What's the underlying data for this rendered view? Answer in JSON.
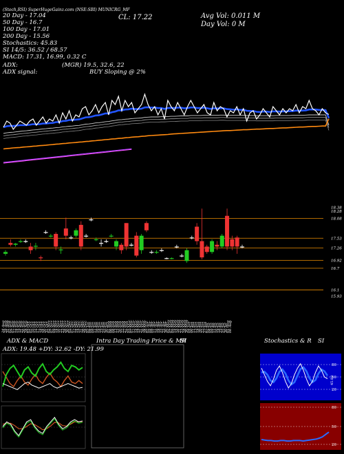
{
  "header": {
    "line1": "(Stoch,RSI) SuperHugeGainz.com (NSE:SBI) MUNICRG_MF",
    "ema20_label": "20 Day - 17.04",
    "ema50_label": "50 Day - 16.7",
    "ema100_label": "100 Day - 17.01",
    "ema200_label": "200 Day - 15.56",
    "close_label": "CL: 17.22",
    "avg_vol_label": "Avg Vol: 0.011 M",
    "day_vol_label": "Day Vol: 0  M",
    "stochastics_label": "Stochastics: 45.83",
    "si_label": "SI 14/5: 36.52 / 68.57",
    "macd_label": "MACD: 17.31, 16.99, 0.32  C",
    "adx_label": "ADX:",
    "adx_values": "(MGR) 19.5,  32.6,  22",
    "adx_signal_label": "ADX  signal:",
    "adx_signal_value": "BUY Sloping @ 2%"
  },
  "colors": {
    "price_line": "#ffffff",
    "ema20": "#2255ff",
    "ema50": "#cccccc",
    "ema100": "#ff8a10",
    "ema200": "#ff55ff",
    "candle_up": "#22cc22",
    "candle_down": "#ee3333",
    "level_line": "#cc7a00",
    "plus_di": "#22cc22",
    "minus_di": "#cc5522",
    "stoch_bg": "#0000cc",
    "rsi_bg": "#880000"
  },
  "chart_data": {
    "type": "line",
    "x": [
      "24 Aug",
      "29 Aug",
      "31 Aug",
      "02 Sep",
      "07 Sep",
      "12 Sep",
      "14 Sep",
      "19 Sep",
      "21 Sep",
      "26 Sep",
      "28 Sep",
      "03 Oct",
      "05 Oct",
      "10 Oct",
      "12 Oct",
      "17 Oct",
      "19 Oct",
      "24 Oct",
      "26 Oct",
      "31 Oct",
      "02 Nov",
      "07 Nov",
      "09 Nov",
      "14 Nov",
      "16 Nov",
      "21 Nov",
      "23 Nov",
      "28 Nov",
      "30 Nov",
      "05 Dec",
      "07 Dec",
      "12 Dec",
      "14 Dec",
      "19 Dec",
      "21 Dec",
      "26 Dec",
      "28 Dec",
      "02 Jan",
      "04 Jan",
      "09 Jan",
      "11 Jan",
      "16 Jan",
      "18 Jan",
      "23 Jan",
      "25 Jan",
      "30 Jan",
      "01 Feb",
      "06 Feb",
      "08 Feb",
      "13 Feb",
      "15 Feb",
      "20 Feb",
      "22 Feb",
      "27 Feb",
      "29 Feb",
      "05 Mar",
      "07 Mar",
      "12 Mar",
      "14 Mar",
      "19 Mar",
      "21 Mar",
      "26 Mar",
      "28 Mar",
      "02 Apr",
      "04 Apr",
      "09 Apr",
      "11 Apr",
      "16 Apr",
      "18 Apr",
      "23 Apr",
      "25 Apr",
      "30 Apr",
      "02 May",
      "07 May",
      "09 May",
      "14 May",
      "16 May",
      "21 May",
      "23 May",
      "28 May",
      "30 May",
      "04 Jun",
      "06 Jun",
      "11 Jun",
      "13 Jun",
      "18 Jun",
      "20 Jun",
      "25 Jun",
      "27 Jun",
      "02 Jul",
      "04 Jul",
      "09 Jul",
      "11 Jul",
      "16 Jul",
      "18 Jul",
      "23 Jul",
      "25 Jul",
      "30 Jul",
      "01 Aug",
      "06 Aug"
    ],
    "price": [
      16.6,
      16.9,
      16.8,
      16.5,
      16.7,
      16.9,
      16.8,
      16.7,
      16.9,
      17.0,
      16.7,
      16.9,
      17.1,
      16.8,
      17.0,
      16.9,
      17.2,
      16.8,
      17.3,
      17.0,
      17.4,
      16.9,
      17.2,
      17.1,
      17.5,
      17.6,
      17.2,
      17.4,
      17.7,
      17.3,
      17.6,
      17.8,
      17.2,
      17.9,
      17.7,
      18.1,
      17.4,
      17.9,
      17.6,
      17.8,
      17.3,
      17.5,
      17.7,
      18.2,
      17.7,
      17.4,
      17.6,
      17.2,
      17.5,
      17.0,
      17.9,
      17.6,
      17.4,
      17.8,
      17.5,
      17.2,
      17.6,
      17.9,
      17.6,
      17.3,
      17.5,
      17.7,
      17.3,
      17.2,
      17.8,
      17.4,
      17.6,
      17.5,
      17.1,
      17.4,
      17.3,
      17.6,
      17.2,
      17.5,
      16.9,
      17.3,
      17.4,
      17.0,
      17.2,
      17.5,
      17.3,
      17.1,
      17.6,
      17.4,
      17.2,
      17.5,
      17.3,
      17.5,
      17.4,
      17.7,
      17.3,
      17.6,
      17.5,
      17.9,
      17.5,
      17.4,
      17.2,
      17.5,
      17.3,
      17.22
    ],
    "ema20": [
      16.6,
      16.65,
      16.67,
      16.66,
      16.68,
      16.7,
      16.7,
      16.7,
      16.72,
      16.75,
      16.74,
      16.75,
      16.78,
      16.78,
      16.8,
      16.81,
      16.85,
      16.85,
      16.9,
      16.91,
      16.95,
      16.95,
      16.97,
      16.98,
      17.03,
      17.08,
      17.09,
      17.12,
      17.17,
      17.18,
      17.22,
      17.27,
      17.27,
      17.33,
      17.36,
      17.42,
      17.42,
      17.46,
      17.47,
      17.5,
      17.48,
      17.48,
      17.5,
      17.56,
      17.57,
      17.55,
      17.56,
      17.53,
      17.53,
      17.49,
      17.53,
      17.54,
      17.53,
      17.55,
      17.55,
      17.52,
      17.53,
      17.56,
      17.56,
      17.53,
      17.53,
      17.55,
      17.52,
      17.49,
      17.52,
      17.51,
      17.52,
      17.52,
      17.48,
      17.47,
      17.45,
      17.47,
      17.44,
      17.45,
      17.4,
      17.39,
      17.39,
      17.35,
      17.34,
      17.36,
      17.36,
      17.34,
      17.37,
      17.37,
      17.36,
      17.37,
      17.37,
      17.38,
      17.38,
      17.41,
      17.4,
      17.41,
      17.42,
      17.46,
      17.46,
      17.46,
      17.44,
      17.44,
      17.43,
      17.04
    ],
    "ema50": [
      16.3,
      16.33,
      16.35,
      16.36,
      16.38,
      16.4,
      16.42,
      16.43,
      16.45,
      16.47,
      16.48,
      16.5,
      16.52,
      16.53,
      16.55,
      16.56,
      16.58,
      16.59,
      16.62,
      16.63,
      16.65,
      16.66,
      16.68,
      16.69,
      16.72,
      16.75,
      16.76,
      16.78,
      16.81,
      16.82,
      16.84,
      16.87,
      16.88,
      16.91,
      16.93,
      16.96,
      16.97,
      16.99,
      17.0,
      17.02,
      17.03,
      17.04,
      17.05,
      17.08,
      17.09,
      17.1,
      17.1,
      17.1,
      17.11,
      17.11,
      17.12,
      17.13,
      17.13,
      17.14,
      17.15,
      17.15,
      17.15,
      17.17,
      17.17,
      17.17,
      17.17,
      17.18,
      17.18,
      17.18,
      17.18,
      17.18,
      17.19,
      17.19,
      17.18,
      17.18,
      17.18,
      17.18,
      17.18,
      17.18,
      17.17,
      17.17,
      17.17,
      17.16,
      17.16,
      17.16,
      17.16,
      17.16,
      17.16,
      17.17,
      17.17,
      17.17,
      17.17,
      17.17,
      17.18,
      17.18,
      17.18,
      17.18,
      17.19,
      17.2,
      17.2,
      17.2,
      17.2,
      17.2,
      17.2,
      16.7
    ],
    "ema100": [
      15.55,
      15.57,
      15.58,
      15.6,
      15.61,
      15.62,
      15.64,
      15.65,
      15.66,
      15.68,
      15.69,
      15.71,
      15.72,
      15.73,
      15.75,
      15.76,
      15.78,
      15.79,
      15.81,
      15.82,
      15.84,
      15.85,
      15.86,
      15.88,
      15.89,
      15.91,
      15.92,
      15.94,
      15.95,
      15.97,
      15.98,
      16.0,
      16.01,
      16.03,
      16.04,
      16.06,
      16.07,
      16.09,
      16.1,
      16.12,
      16.13,
      16.14,
      16.16,
      16.17,
      16.19,
      16.2,
      16.21,
      16.22,
      16.23,
      16.24,
      16.25,
      16.27,
      16.28,
      16.29,
      16.3,
      16.31,
      16.32,
      16.33,
      16.34,
      16.35,
      16.36,
      16.37,
      16.38,
      16.39,
      16.4,
      16.41,
      16.42,
      16.43,
      16.44,
      16.44,
      16.45,
      16.46,
      16.47,
      16.48,
      16.48,
      16.49,
      16.5,
      16.51,
      16.51,
      16.52,
      16.53,
      16.54,
      16.54,
      16.55,
      16.56,
      16.57,
      16.57,
      16.58,
      16.59,
      16.6,
      16.61,
      16.61,
      16.62,
      16.63,
      16.64,
      16.64,
      16.65,
      16.66,
      16.66,
      17.01
    ],
    "ema200_points": 40,
    "ema200_start": 14.9,
    "ema200_end": 15.56,
    "candles": [
      {
        "o": 17.1,
        "c": 17.15,
        "h": 17.2,
        "l": 17.05
      },
      {
        "o": 17.4,
        "c": 17.35,
        "h": 17.5,
        "l": 17.3
      },
      {
        "o": 17.35,
        "c": 17.38,
        "h": 17.4,
        "l": 17.3
      },
      {
        "o": 17.45,
        "c": 17.45,
        "h": 17.5,
        "l": 17.4
      },
      {
        "o": 17.45,
        "c": 17.45,
        "h": 17.5,
        "l": 17.4
      },
      {
        "o": 17.3,
        "c": 17.2,
        "h": 17.4,
        "l": 17.1
      },
      {
        "o": 17.3,
        "c": 17.32,
        "h": 17.4,
        "l": 17.2
      },
      {
        "o": 17.0,
        "c": 16.98,
        "h": 17.05,
        "l": 16.9
      },
      {
        "o": 17.7,
        "c": 17.7,
        "h": 17.75,
        "l": 17.65
      },
      {
        "o": 17.6,
        "c": 17.6,
        "h": 17.65,
        "l": 17.55
      },
      {
        "o": 17.65,
        "c": 17.3,
        "h": 17.7,
        "l": 17.2
      },
      {
        "o": 17.2,
        "c": 17.22,
        "h": 17.3,
        "l": 17.1
      },
      {
        "o": 17.8,
        "c": 17.6,
        "h": 18.1,
        "l": 17.5
      },
      {
        "o": 17.55,
        "c": 17.55,
        "h": 17.6,
        "l": 17.5
      },
      {
        "o": 17.6,
        "c": 17.75,
        "h": 17.8,
        "l": 17.55
      },
      {
        "o": 17.9,
        "c": 17.3,
        "h": 18.0,
        "l": 17.2
      },
      {
        "o": 17.6,
        "c": 17.6,
        "h": 17.65,
        "l": 17.55
      },
      {
        "o": 18.05,
        "c": 18.05,
        "h": 18.1,
        "l": 18.0
      },
      {
        "o": 17.5,
        "c": 17.5,
        "h": 17.55,
        "l": 17.45
      },
      {
        "o": 17.4,
        "c": 17.4,
        "h": 17.5,
        "l": 17.3
      },
      {
        "o": 17.45,
        "c": 17.45,
        "h": 17.5,
        "l": 17.4
      },
      {
        "o": 17.6,
        "c": 17.6,
        "h": 17.65,
        "l": 17.55
      },
      {
        "o": 17.3,
        "c": 17.45,
        "h": 17.5,
        "l": 17.2
      },
      {
        "o": 17.35,
        "c": 17.2,
        "h": 17.4,
        "l": 17.1
      },
      {
        "o": 17.95,
        "c": 17.3,
        "h": 17.95,
        "l": 17.2
      },
      {
        "o": 17.35,
        "c": 17.35,
        "h": 17.4,
        "l": 17.3
      },
      {
        "o": 17.6,
        "c": 17.05,
        "h": 17.7,
        "l": 17.0
      },
      {
        "o": 17.2,
        "c": 17.6,
        "h": 17.65,
        "l": 17.1
      },
      {
        "o": 17.95,
        "c": 17.75,
        "h": 18.0,
        "l": 17.7
      },
      {
        "o": 17.15,
        "c": 17.15,
        "h": 17.2,
        "l": 17.1
      },
      {
        "o": 17.15,
        "c": 17.15,
        "h": 17.2,
        "l": 17.1
      },
      {
        "o": 17.2,
        "c": 17.2,
        "h": 17.25,
        "l": 17.15
      },
      {
        "o": 16.98,
        "c": 16.98,
        "h": 17.0,
        "l": 16.95
      },
      {
        "o": 16.98,
        "c": 16.98,
        "h": 17.0,
        "l": 16.95
      },
      {
        "o": 17.3,
        "c": 17.3,
        "h": 17.35,
        "l": 17.25
      },
      {
        "o": 17.05,
        "c": 17.05,
        "h": 17.1,
        "l": 17.0
      },
      {
        "o": 16.9,
        "c": 17.2,
        "h": 17.25,
        "l": 16.85
      },
      {
        "o": 17.55,
        "c": 17.55,
        "h": 17.6,
        "l": 17.5
      },
      {
        "o": 17.85,
        "c": 17.45,
        "h": 17.95,
        "l": 17.35
      },
      {
        "o": 17.45,
        "c": 17.0,
        "h": 18.35,
        "l": 16.95
      },
      {
        "o": 17.3,
        "c": 17.15,
        "h": 17.35,
        "l": 17.1
      },
      {
        "o": 17.15,
        "c": 17.45,
        "h": 17.5,
        "l": 17.1
      },
      {
        "o": 17.35,
        "c": 17.3,
        "h": 17.45,
        "l": 17.2
      },
      {
        "o": 17.3,
        "c": 17.6,
        "h": 17.65,
        "l": 17.25
      },
      {
        "o": 18.15,
        "c": 17.3,
        "h": 18.35,
        "l": 17.2
      },
      {
        "o": 17.5,
        "c": 17.3,
        "h": 17.6,
        "l": 17.2
      },
      {
        "o": 17.55,
        "c": 17.3,
        "h": 17.6,
        "l": 17.1
      },
      {
        "o": 17.3,
        "c": 17.3,
        "h": 17.35,
        "l": 17.25
      }
    ],
    "price_axis": [
      "18.38",
      "18.28",
      "18.08",
      "17.53",
      "17.26",
      "16.92",
      "16.7",
      "16.1",
      "15.93"
    ],
    "price_axis_values": [
      18.38,
      18.28,
      18.08,
      17.53,
      17.26,
      16.92,
      16.7,
      16.1,
      15.93
    ],
    "level_values": [
      18.08,
      17.53,
      17.26,
      16.92,
      16.7,
      16.1
    ],
    "dates": [
      "24 Aug",
      "29 Aug",
      "31 Aug",
      "02 Sep",
      "07 Sep",
      "12 Sep",
      "14 Sep",
      "19 Sep",
      "21 Sep",
      "26 Sep",
      "28 Sep",
      "03 Oct",
      "05 Oct",
      "10 Oct",
      "12 Oct",
      "17 Oct",
      "19 Oct",
      "24 Oct",
      "26 Oct",
      "31 Oct",
      "02 Nov",
      "07 Nov",
      "09 Nov",
      "14 Nov",
      "16 Nov",
      "21 Nov",
      "23 Nov",
      "28 Nov",
      "30 Nov",
      "05 Dec",
      "07 Dec",
      "12 Dec",
      "14 Dec",
      "19 Dec",
      "21 Dec",
      "26 Dec",
      "28 Dec",
      "02 Jan",
      "04 Jan",
      "09 Jan",
      "11 Jan",
      "16 Jan",
      "18 Jan",
      "23 Jan",
      "25 Jan",
      "30 Jan",
      "01 Feb",
      "06 Feb",
      "08 Feb",
      "13 Feb",
      "15 Feb",
      "20 Feb",
      "22 Feb",
      "27 Feb",
      "29 Feb",
      "05 Mar",
      "07 Mar",
      "12 Mar",
      "14 Mar",
      "19 Mar",
      "21 Mar",
      "26 Mar",
      "28 Mar",
      "02 Apr",
      "04 Apr",
      "09 Apr",
      "11 Apr",
      "16 Apr",
      "18 Apr",
      "23 Apr",
      "25 Apr",
      "30 Apr",
      "02 May",
      "07 May",
      "09 May",
      "14 May",
      "16 May",
      "21 May",
      "23 May",
      "28 May",
      "30 May",
      "04 Jun",
      "06 Jun",
      "11 Jun",
      "13 Jun",
      "18 Jun",
      "20 Jun",
      "25 Jun",
      "27 Jun",
      "02 Jul",
      "04 Jul",
      "09 Jul",
      "11 Jul",
      "16 Jul",
      "18 Jul",
      "23 Jul",
      "25 Jul",
      "30 Jul",
      "01 Aug",
      "06 Aug"
    ]
  },
  "panels": {
    "adx_title": "ADX & MACD",
    "adx_values": "ADX: 19.48  +DY: 32.62  -DY: 21.99",
    "intraday_title": "Intra Day Trading Price & MR",
    "intraday_si": "SI",
    "stoch_title": "Stochastics & R",
    "stoch_si": "SI",
    "stoch_axis": [
      "80",
      "50",
      "20"
    ],
    "stoch_value": "45.83",
    "rsi_axis": [
      "80",
      "50",
      "20"
    ],
    "adx_series": {
      "adx": [
        22,
        21,
        20,
        19,
        18,
        20,
        22,
        23,
        21,
        20,
        19,
        20,
        21,
        22,
        20,
        19,
        20,
        21,
        22,
        21,
        20,
        19,
        19.48
      ],
      "plus_di": [
        20,
        28,
        32,
        34,
        30,
        26,
        31,
        33,
        29,
        27,
        32,
        35,
        30,
        28,
        31,
        33,
        36,
        32,
        30,
        34,
        33,
        31,
        32.62
      ],
      "minus_di": [
        30,
        26,
        22,
        20,
        24,
        27,
        23,
        21,
        25,
        28,
        24,
        22,
        26,
        29,
        25,
        23,
        20,
        24,
        27,
        23,
        22,
        24,
        21.99
      ]
    },
    "macd_series": {
      "macd": [
        0.2,
        0.3,
        0.25,
        0.1,
        0.0,
        0.15,
        0.3,
        0.35,
        0.2,
        0.1,
        0.05,
        0.2,
        0.3,
        0.4,
        0.25,
        0.15,
        0.2,
        0.3,
        0.35,
        0.3,
        0.32
      ],
      "signal": [
        0.25,
        0.27,
        0.27,
        0.22,
        0.15,
        0.15,
        0.2,
        0.26,
        0.24,
        0.19,
        0.13,
        0.15,
        0.21,
        0.29,
        0.28,
        0.22,
        0.21,
        0.25,
        0.3,
        0.3,
        0.31
      ]
    },
    "stoch_series": {
      "k": [
        70,
        55,
        40,
        30,
        45,
        65,
        75,
        60,
        40,
        25,
        35,
        55,
        70,
        80,
        65,
        45,
        30,
        40,
        60,
        75,
        65,
        50,
        45.83
      ],
      "d": [
        60,
        62,
        55,
        42,
        38,
        47,
        62,
        67,
        58,
        42,
        33,
        38,
        53,
        68,
        72,
        63,
        47,
        38,
        43,
        58,
        67,
        63,
        53
      ]
    },
    "rsi_series": [
      22,
      21,
      20,
      20,
      19,
      19,
      20,
      20,
      19,
      19,
      20,
      20,
      20,
      19,
      20,
      21,
      22,
      23,
      25,
      28,
      33,
      38
    ]
  }
}
